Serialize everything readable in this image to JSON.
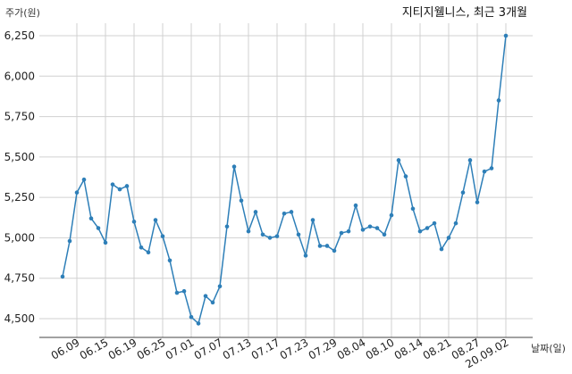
{
  "chart_data": {
    "type": "line",
    "title": "지티지웰니스, 최근 3개월",
    "ylabel": "주가(원)",
    "xlabel": "날짜(일)",
    "ylim": [
      4400,
      6350
    ],
    "yticks": [
      4500,
      4750,
      5000,
      5250,
      5500,
      5750,
      6000,
      6250
    ],
    "ytick_labels": [
      "4,500",
      "4,750",
      "5,000",
      "5,250",
      "5,500",
      "5,750",
      "6,000",
      "6,250"
    ],
    "xtick_labels": [
      "06.09",
      "06.15",
      "06.19",
      "06.25",
      "07.01",
      "07.07",
      "07.13",
      "07.17",
      "07.23",
      "07.29",
      "08.04",
      "08.10",
      "08.14",
      "08.21",
      "08.27",
      "20.09.02"
    ],
    "xtick_indices": [
      2,
      6,
      10,
      14,
      18,
      22,
      26,
      30,
      34,
      38,
      42,
      46,
      50,
      54,
      58,
      62
    ],
    "grid": true,
    "series_color": "#2e7fb8",
    "series": [
      {
        "values": [
          4760,
          4980,
          5280,
          5360,
          5120,
          5060,
          4970,
          5330,
          5300,
          5320,
          5100,
          4940,
          4910,
          5110,
          5010,
          4860,
          4660,
          4670,
          4510,
          4470,
          4640,
          4600,
          4700,
          5070,
          5440,
          5230,
          5040,
          5160,
          5020,
          5000,
          5010,
          5150,
          5160,
          5020,
          4890,
          5110,
          4950,
          4950,
          4920,
          5030,
          5040,
          5200,
          5050,
          5070,
          5060,
          5020,
          5140,
          5480,
          5380,
          5180,
          5040,
          5060,
          5090,
          4930,
          5000,
          5090,
          5280,
          5480,
          5220,
          5410,
          5430,
          5850,
          6250
        ]
      }
    ]
  }
}
